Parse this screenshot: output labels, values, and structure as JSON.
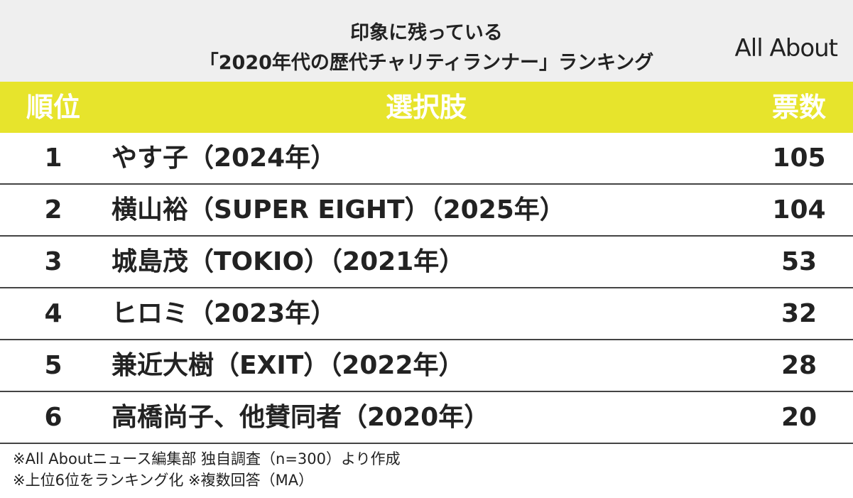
{
  "header": {
    "title_lines": [
      "印象に残っている",
      "「2020年代の歴代チャリティランナー」ランキング"
    ],
    "logo": "All About"
  },
  "table": {
    "columns": [
      "順位",
      "選択肢",
      "票数"
    ],
    "rows": [
      [
        1,
        "やす子（2024年）",
        105
      ],
      [
        2,
        "横山裕（SUPER EIGHT）（2025年）",
        104
      ],
      [
        3,
        "城島茂（TOKIO）（2021年）",
        53
      ],
      [
        4,
        "ヒロミ（2023年）",
        32
      ],
      [
        5,
        "兼近大樹（EXIT）（2022年）",
        28
      ],
      [
        6,
        "高橋尚子、他賛同者（2020年）",
        20
      ]
    ]
  },
  "footer": {
    "notes": [
      "※All Aboutニュース編集部 独自調査（n=300）より作成",
      "※上位6位をランキング化 ※複数回答（MA）"
    ]
  }
}
